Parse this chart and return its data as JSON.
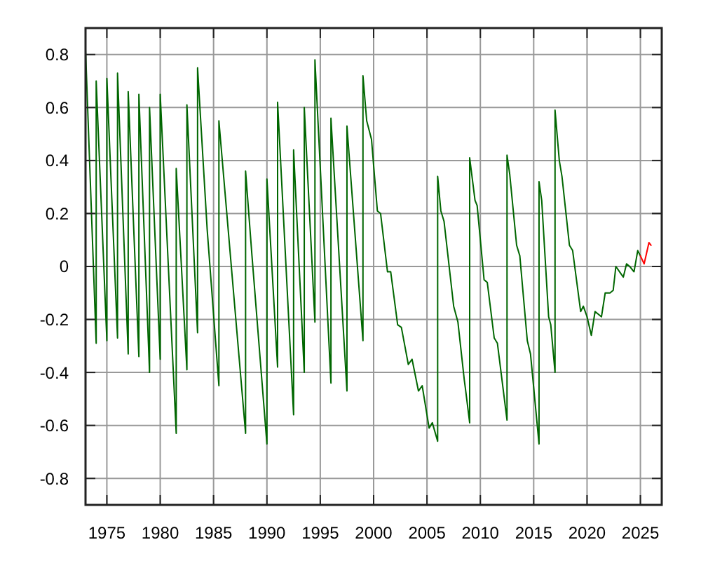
{
  "chart_data": {
    "type": "line",
    "xlim": [
      1973,
      2027
    ],
    "ylim": [
      -0.9,
      0.9
    ],
    "xticks": [
      1975,
      1980,
      1985,
      1990,
      1995,
      2000,
      2005,
      2010,
      2015,
      2020,
      2025
    ],
    "yticks": [
      {
        "value": -0.8,
        "label": "-0.8"
      },
      {
        "value": -0.6,
        "label": "-0.6"
      },
      {
        "value": -0.4,
        "label": "-0.4"
      },
      {
        "value": -0.2,
        "label": "-0.2"
      },
      0,
      {
        "value": 0.2,
        "label": "0.2"
      },
      {
        "value": 0.4,
        "label": "0.4"
      },
      {
        "value": 0.6,
        "label": "0.6"
      },
      {
        "value": 0.8,
        "label": "0.8"
      }
    ],
    "grid": true,
    "marker": "none",
    "line_style": "solid",
    "series": [
      {
        "color": "#006600",
        "x": [
          1973.0,
          1974.0,
          1974.0,
          1975.0,
          1975.0,
          1976.0,
          1976.0,
          1977.0,
          1977.0,
          1978.0,
          1978.0,
          1979.0,
          1979.0,
          1980.0,
          1980.0,
          1981.5,
          1981.5,
          1982.5,
          1982.5,
          1983.5,
          1983.5,
          1984.4,
          1985.5,
          1985.5,
          1986.6,
          1988.0,
          1988.0,
          1988.6,
          1990.0,
          1990.0,
          1991.0,
          1991.0,
          1992.5,
          1992.5,
          1993.5,
          1993.5,
          1994.5,
          1994.5,
          1996.0,
          1996.0,
          1997.5,
          1997.5,
          1999.0,
          1999.0,
          1999.35,
          1999.8,
          2000.35,
          2000.65,
          2001.3,
          2001.6,
          2002.25,
          2002.6,
          2003.25,
          2003.6,
          2004.2,
          2004.55,
          2005.2,
          2005.5,
          2006.0,
          2006.0,
          2006.3,
          2006.6,
          2007.5,
          2007.9,
          2008.5,
          2008.6,
          2009.0,
          2009.0,
          2009.5,
          2009.7,
          2010.35,
          2010.65,
          2011.3,
          2011.6,
          2012.5,
          2012.5,
          2012.75,
          2013.4,
          2013.7,
          2014.4,
          2014.7,
          2015.5,
          2015.5,
          2015.75,
          2016.4,
          2016.6,
          2017.0,
          2017.0,
          2017.4,
          2017.65,
          2018.35,
          2018.65,
          2019.4,
          2019.65,
          2020.0,
          2020.4,
          2020.75,
          2021.05,
          2021.35,
          2021.7,
          2022.15,
          2022.45,
          2022.7,
          2023.05,
          2023.4,
          2023.7,
          2024.0,
          2024.4,
          2024.75,
          2025.0
        ],
        "values": [
          0.82,
          -0.29,
          0.7,
          -0.28,
          0.71,
          -0.27,
          0.73,
          -0.33,
          0.66,
          -0.34,
          0.65,
          -0.4,
          0.6,
          -0.35,
          0.65,
          -0.63,
          0.37,
          -0.39,
          0.61,
          -0.25,
          0.75,
          0.14,
          -0.45,
          0.55,
          0.03,
          -0.63,
          0.36,
          0.04,
          -0.67,
          0.33,
          -0.38,
          0.62,
          -0.56,
          0.44,
          -0.4,
          0.6,
          -0.21,
          0.78,
          -0.44,
          0.56,
          -0.47,
          0.53,
          -0.28,
          0.72,
          0.55,
          0.48,
          0.21,
          0.2,
          -0.02,
          -0.02,
          -0.22,
          -0.23,
          -0.37,
          -0.35,
          -0.47,
          -0.45,
          -0.61,
          -0.59,
          -0.66,
          0.34,
          0.21,
          0.17,
          -0.15,
          -0.21,
          -0.43,
          -0.46,
          -0.59,
          0.41,
          0.25,
          0.23,
          -0.05,
          -0.06,
          -0.27,
          -0.29,
          -0.58,
          0.42,
          0.35,
          0.08,
          0.04,
          -0.28,
          -0.33,
          -0.67,
          0.32,
          0.25,
          -0.19,
          -0.22,
          -0.4,
          0.59,
          0.4,
          0.34,
          0.08,
          0.06,
          -0.17,
          -0.15,
          -0.19,
          -0.26,
          -0.17,
          -0.18,
          -0.19,
          -0.1,
          -0.1,
          -0.09,
          0.0,
          -0.02,
          -0.04,
          0.01,
          0.0,
          -0.02,
          0.06,
          0.04
        ]
      },
      {
        "color": "#ff0000",
        "x": [
          2025.0,
          2025.35,
          2025.8,
          2026.0
        ],
        "values": [
          0.04,
          0.01,
          0.09,
          0.08
        ]
      }
    ]
  }
}
